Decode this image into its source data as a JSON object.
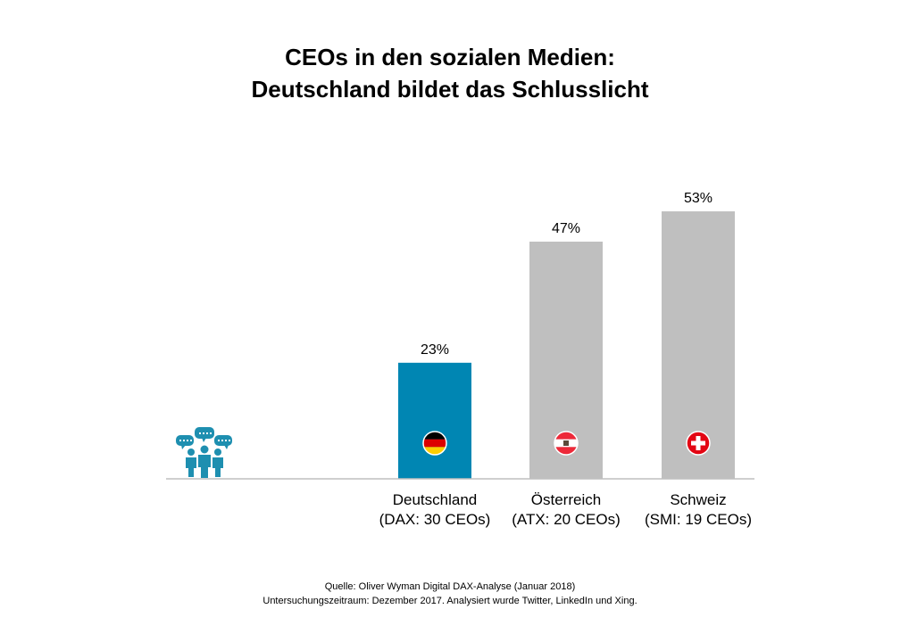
{
  "title": {
    "line1": "CEOs in den sozialen Medien:",
    "line2": "Deutschland bildet das Schlusslicht"
  },
  "chart_data": {
    "type": "bar",
    "categories": [
      "Deutschland",
      "Österreich",
      "Schweiz"
    ],
    "category_sublabels": [
      "(DAX: 30 CEOs)",
      "(ATX:  20 CEOs)",
      "(SMI: 19 CEOs)"
    ],
    "values": [
      23,
      47,
      53
    ],
    "value_labels": [
      "23%",
      "47%",
      "53%"
    ],
    "unit": "%",
    "ylim": [
      0,
      100
    ],
    "grid": false,
    "legend": "none",
    "colors": [
      "#0086B3",
      "#BFBFBF",
      "#BFBFBF"
    ],
    "flags": [
      "germany-flag-icon",
      "austria-flag-icon",
      "switzerland-flag-icon"
    ]
  },
  "decoration": {
    "icon": "social-media-people-icon",
    "icon_color": "#1E8FB0",
    "axis_color": "#BFBFBF"
  },
  "source": {
    "line1": "Quelle: Oliver Wyman Digital DAX-Analyse (Januar 2018)",
    "line2": "Untersuchungszeitraum:  Dezember  2017. Analysiert wurde Twitter, LinkedIn und Xing."
  }
}
